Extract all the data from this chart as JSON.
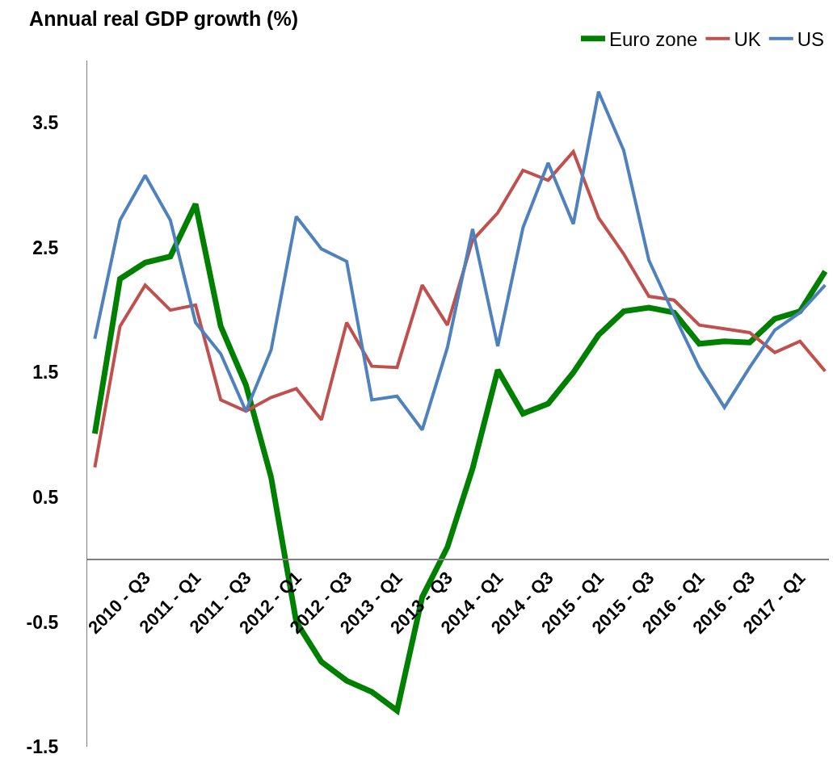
{
  "chart_data": {
    "type": "line",
    "title": "Annual real GDP growth (%)",
    "categories": [
      null,
      null,
      "2010 - Q3",
      null,
      "2011 - Q1",
      null,
      "2011 - Q3",
      null,
      "2012 - Q1",
      null,
      "2012 - Q3",
      null,
      "2013 - Q1",
      null,
      "2013 - Q3",
      null,
      "2014 - Q1",
      null,
      "2014 - Q3",
      null,
      "2015 - Q1",
      null,
      "2015 - Q3",
      null,
      "2016 - Q1",
      null,
      "2016 - Q3",
      null,
      "2017 - Q1",
      null
    ],
    "series": [
      {
        "name": "Euro zone",
        "color": "#008000",
        "values": [
          1.01,
          2.25,
          2.38,
          2.43,
          2.85,
          1.87,
          1.4,
          0.66,
          -0.5,
          -0.82,
          -0.97,
          -1.06,
          -1.21,
          -0.3,
          0.1,
          0.73,
          1.52,
          1.17,
          1.25,
          1.5,
          1.8,
          1.99,
          2.02,
          1.98,
          1.73,
          1.75,
          1.74,
          1.93,
          1.99,
          2.31
        ]
      },
      {
        "name": "UK",
        "color": "#c0504d",
        "values": [
          0.74,
          1.87,
          2.2,
          2.0,
          2.04,
          1.28,
          1.19,
          1.3,
          1.37,
          1.12,
          1.9,
          1.55,
          1.54,
          2.2,
          1.88,
          2.56,
          2.78,
          3.12,
          3.04,
          3.27,
          2.74,
          2.45,
          2.11,
          2.08,
          1.88,
          1.85,
          1.82,
          1.66,
          1.75,
          1.51
        ]
      },
      {
        "name": "US",
        "color": "#4f81bd",
        "values": [
          1.77,
          2.72,
          3.08,
          2.72,
          1.9,
          1.65,
          1.19,
          1.68,
          2.75,
          2.49,
          2.39,
          1.28,
          1.31,
          1.04,
          1.7,
          2.65,
          1.71,
          2.66,
          3.18,
          2.69,
          3.75,
          3.28,
          2.4,
          1.96,
          1.54,
          1.22,
          1.54,
          1.84,
          1.98,
          2.2
        ]
      }
    ],
    "ylim": [
      -1.5,
      4
    ],
    "yticks": [
      -1.5,
      -0.5,
      0.5,
      1.5,
      2.5,
      3.5
    ],
    "grid": false,
    "legend": "top right",
    "marker": "none",
    "line_style": "solid"
  }
}
